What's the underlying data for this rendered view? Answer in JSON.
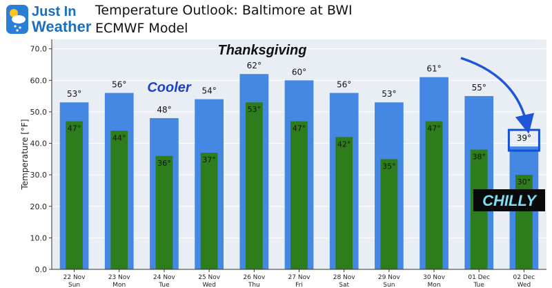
{
  "logo": {
    "line1": "Just In",
    "line2": "Weather",
    "icon": "sun-snow-cloud-icon"
  },
  "header": {
    "title_line1": "Temperature Outlook: Baltimore at BWI",
    "title_line2": "ECMWF Model"
  },
  "annotations": {
    "thanksgiving": "Thanksgiving",
    "cooler": "Cooler",
    "chilly": "CHILLY"
  },
  "colors": {
    "high_bar": "#4488e4",
    "low_bar": "#2e7d1d",
    "plot_bg": "#e8eef3",
    "cooler_text": "#1f3fc8",
    "highlight_box": "#1550d8",
    "arrow": "#1f55d6",
    "chilly_bg": "#0a0a0a",
    "chilly_text": "#7fe0f5"
  },
  "chart_data": {
    "type": "bar",
    "categories": [
      "22 Nov",
      "23 Nov",
      "24 Nov",
      "25 Nov",
      "26 Nov",
      "27 Nov",
      "28 Nov",
      "29 Nov",
      "30 Nov",
      "01 Dec",
      "02 Dec"
    ],
    "weekdays": [
      "Sun",
      "Mon",
      "Tue",
      "Wed",
      "Thu",
      "Fri",
      "Sat",
      "Sun",
      "Mon",
      "Tue",
      "Wed"
    ],
    "series": [
      {
        "values": [
          53,
          56,
          48,
          54,
          62,
          60,
          56,
          53,
          61,
          55,
          39
        ]
      },
      {
        "values": [
          47,
          44,
          36,
          37,
          53,
          47,
          42,
          35,
          47,
          38,
          30
        ]
      }
    ],
    "high_labels": [
      "53°",
      "56°",
      "48°",
      "54°",
      "62°",
      "60°",
      "56°",
      "53°",
      "61°",
      "55°",
      "39°"
    ],
    "low_labels": [
      "47°",
      "44°",
      "36°",
      "37°",
      "53°",
      "47°",
      "42°",
      "35°",
      "47°",
      "38°",
      "30°"
    ],
    "ylabel": "Temperature [°F]",
    "ylim": [
      0,
      73
    ],
    "yticks": [
      0,
      10,
      20,
      30,
      40,
      50,
      60,
      70
    ],
    "ytick_labels": [
      "0.0",
      "10.0",
      "20.0",
      "30.0",
      "40.0",
      "50.0",
      "60.0",
      "70.0"
    ],
    "grid": true,
    "highlight_index": 10
  }
}
